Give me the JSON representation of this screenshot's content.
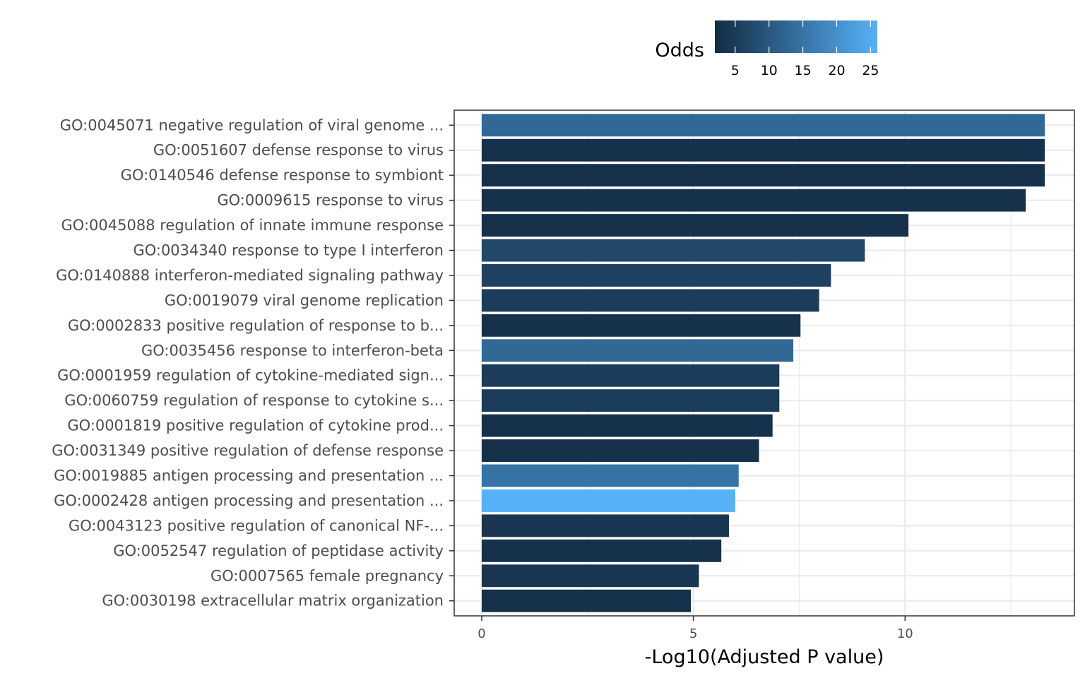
{
  "chart_data": {
    "type": "bar",
    "orientation": "horizontal",
    "categories": [
      "GO:0045071 negative regulation of viral genome ...",
      "GO:0051607 defense response to virus",
      "GO:0140546 defense response to symbiont",
      "GO:0009615 response to virus",
      "GO:0045088 regulation of innate immune response",
      "GO:0034340 response to type I interferon",
      "GO:0140888 interferon-mediated signaling pathway",
      "GO:0019079 viral genome replication",
      "GO:0002833 positive regulation of response to b...",
      "GO:0035456 response to interferon-beta",
      "GO:0001959 regulation of cytokine-mediated sign...",
      "GO:0060759 regulation of response to cytokine s...",
      "GO:0001819 positive regulation of cytokine prod...",
      "GO:0031349 positive regulation of defense response",
      "GO:0019885 antigen processing and presentation ...",
      "GO:0002428 antigen processing and presentation ...",
      "GO:0043123 positive regulation of canonical NF-...",
      "GO:0052547 regulation of peptidase activity",
      "GO:0007565 female pregnancy",
      "GO:0030198 extracellular matrix organization"
    ],
    "values": [
      13.3,
      13.3,
      13.3,
      12.85,
      10.08,
      9.05,
      8.25,
      7.97,
      7.53,
      7.36,
      7.03,
      7.03,
      6.87,
      6.55,
      6.07,
      5.99,
      5.84,
      5.66,
      5.13,
      4.94
    ],
    "odds": [
      13,
      3,
      3,
      3,
      3,
      7,
      6,
      5,
      3,
      13,
      5,
      5,
      3,
      3,
      15,
      26,
      4,
      3,
      4,
      3
    ],
    "xlabel": "-Log10(Adjusted P value)",
    "ylabel": "",
    "xlim": [
      -0.65,
      14.0
    ],
    "x_ticks": [
      0,
      5,
      10
    ],
    "grid": true,
    "legend": {
      "title": "Odds",
      "placement": "top",
      "range": [
        2.0,
        26.0
      ],
      "ticks": [
        5,
        10,
        15,
        20,
        25
      ],
      "low_color": "#132b43",
      "high_color": "#56b1f7"
    }
  }
}
